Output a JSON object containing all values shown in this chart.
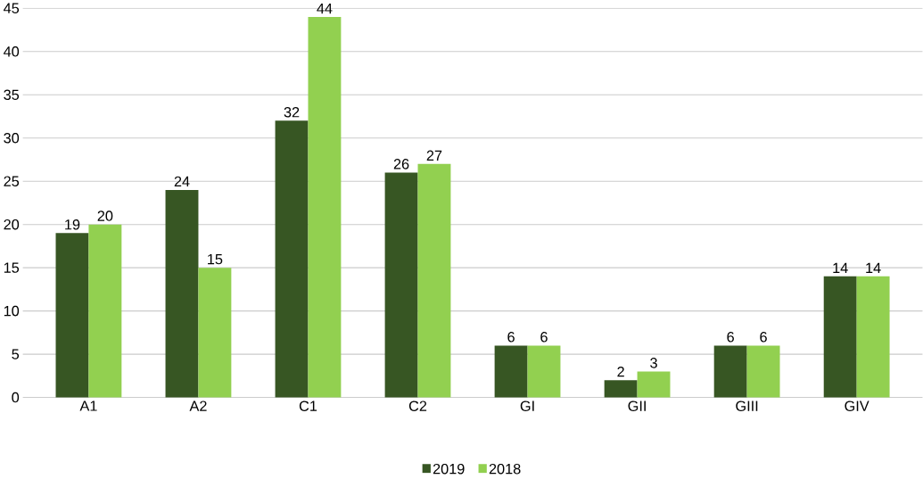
{
  "chart_data": {
    "type": "bar",
    "categories": [
      "A1",
      "A2",
      "C1",
      "C2",
      "GI",
      "GII",
      "GIII",
      "GIV"
    ],
    "series": [
      {
        "name": "2019",
        "color": "#375623",
        "values": [
          19,
          24,
          32,
          26,
          6,
          2,
          6,
          14
        ]
      },
      {
        "name": "2018",
        "color": "#92d050",
        "values": [
          20,
          15,
          44,
          27,
          6,
          3,
          6,
          14
        ]
      }
    ],
    "ylim": [
      0,
      45
    ],
    "yticks": [
      0,
      5,
      10,
      15,
      20,
      25,
      30,
      35,
      40,
      45
    ],
    "grid": "y",
    "legend": "bottom",
    "data_labels": true
  }
}
